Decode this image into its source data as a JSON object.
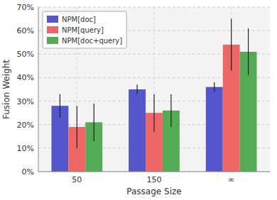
{
  "chart_data": {
    "type": "bar",
    "xlabel": "Passage Size",
    "ylabel": "Fusion Weight",
    "categories": [
      "50",
      "150",
      "∞"
    ],
    "series": [
      {
        "name": "NPM[doc]",
        "color": "#5555cc",
        "values": [
          0.28,
          0.35,
          0.36
        ],
        "errors": [
          0.05,
          0.02,
          0.02
        ]
      },
      {
        "name": "NPM[query]",
        "color": "#ee6666",
        "values": [
          0.19,
          0.25,
          0.54
        ],
        "errors": [
          0.09,
          0.08,
          0.11
        ]
      },
      {
        "name": "NPM[doc+query]",
        "color": "#55aa55",
        "values": [
          0.21,
          0.26,
          0.51
        ],
        "errors": [
          0.08,
          0.07,
          0.1
        ]
      }
    ],
    "ylim": [
      0.0,
      0.7
    ],
    "yticks": [
      {
        "value": 0.0,
        "label": "0%"
      },
      {
        "value": 0.1,
        "label": "10%"
      },
      {
        "value": 0.2,
        "label": "20%"
      },
      {
        "value": 0.3,
        "label": "30%"
      },
      {
        "value": 0.4,
        "label": "40%"
      },
      {
        "value": 0.5,
        "label": "50%"
      },
      {
        "value": 0.6,
        "label": "60%"
      },
      {
        "value": 0.7,
        "label": "70%"
      }
    ],
    "grid": true,
    "legend": "upper left"
  }
}
